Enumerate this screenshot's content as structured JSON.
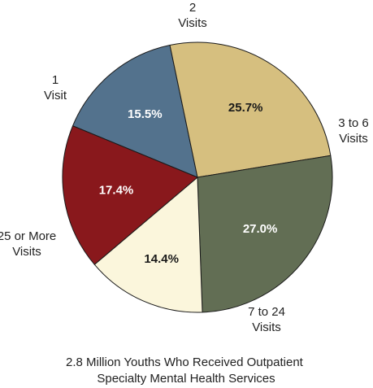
{
  "chart_data": {
    "type": "pie",
    "caption_lines": [
      "2.8 Million Youths Who Received Outpatient",
      "Specialty Mental Health Services"
    ],
    "slices": [
      {
        "category_lines": [
          "2",
          "Visits"
        ],
        "value": 15.5,
        "value_label": "15.5%",
        "color": "#53728d",
        "text_color": "#ffffff"
      },
      {
        "category_lines": [
          "3 to 6",
          "Visits"
        ],
        "value": 25.7,
        "value_label": "25.7%",
        "color": "#d6bf7f",
        "text_color": "#1a1a1a"
      },
      {
        "category_lines": [
          "7 to 24",
          "Visits"
        ],
        "value": 27.0,
        "value_label": "27.0%",
        "color": "#626e54",
        "text_color": "#ffffff"
      },
      {
        "category_lines": [
          "25 or More",
          "Visits"
        ],
        "value": 14.4,
        "value_label": "14.4%",
        "color": "#fbf6dc",
        "text_color": "#1a1a1a"
      },
      {
        "category_lines": [
          "1",
          "Visit"
        ],
        "value": 17.4,
        "value_label": "17.4%",
        "color": "#89181c",
        "text_color": "#ffffff"
      }
    ]
  }
}
